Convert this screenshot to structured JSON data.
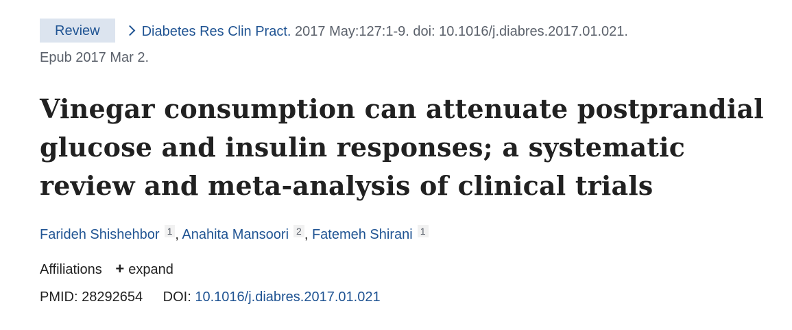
{
  "citation": {
    "badge": "Review",
    "journal": "Diabetes Res Clin Pract.",
    "details_line1": "2017 May:127:1-9. doi: 10.1016/j.diabres.2017.01.021.",
    "details_line2": "Epub 2017 Mar 2."
  },
  "title": "Vinegar consumption can attenuate postprandial glucose and insulin responses; a systematic review and meta-analysis of clinical trials",
  "authors": [
    {
      "name": "Farideh Shishehbor",
      "aff": "1"
    },
    {
      "name": "Anahita Mansoori",
      "aff": "2"
    },
    {
      "name": "Fatemeh Shirani",
      "aff": "1"
    }
  ],
  "affiliations": {
    "label": "Affiliations",
    "expand_label": "expand",
    "expand_icon": "plus-icon"
  },
  "ids": {
    "pmid_label": "PMID:",
    "pmid": "28292654",
    "doi_label": "DOI:",
    "doi": "10.1016/j.diabres.2017.01.021"
  },
  "colors": {
    "link": "#205493",
    "badge_bg": "#dce4ef",
    "muted": "#5b616b"
  }
}
